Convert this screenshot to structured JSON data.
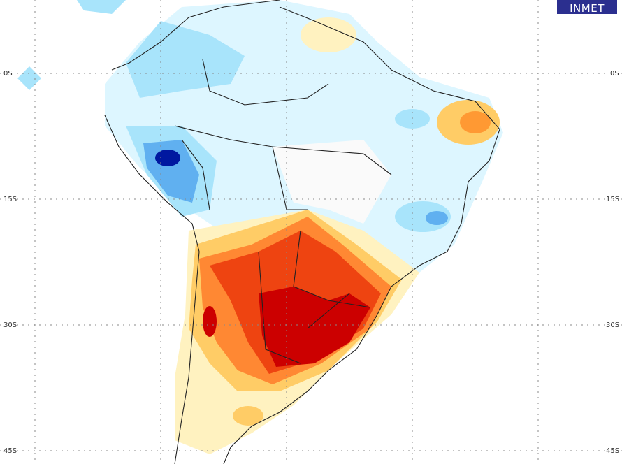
{
  "logo": {
    "text": "INMET",
    "color": "#2b2f8f"
  },
  "latitude_labels": [
    "0S",
    "15S",
    "30S",
    "45S"
  ],
  "palette": {
    "strong_positive": "#cc0000",
    "positive": "#ee4411",
    "moderate_positive": "#ff8833",
    "weak_positive": "#ffcc66",
    "slight_positive": "#fff2c0",
    "slight_negative": "#ddf6ff",
    "weak_negative": "#a8e4fb",
    "moderate_negative": "#60b0f0",
    "negative": "#2060d8",
    "strong_negative": "#0018a0"
  }
}
